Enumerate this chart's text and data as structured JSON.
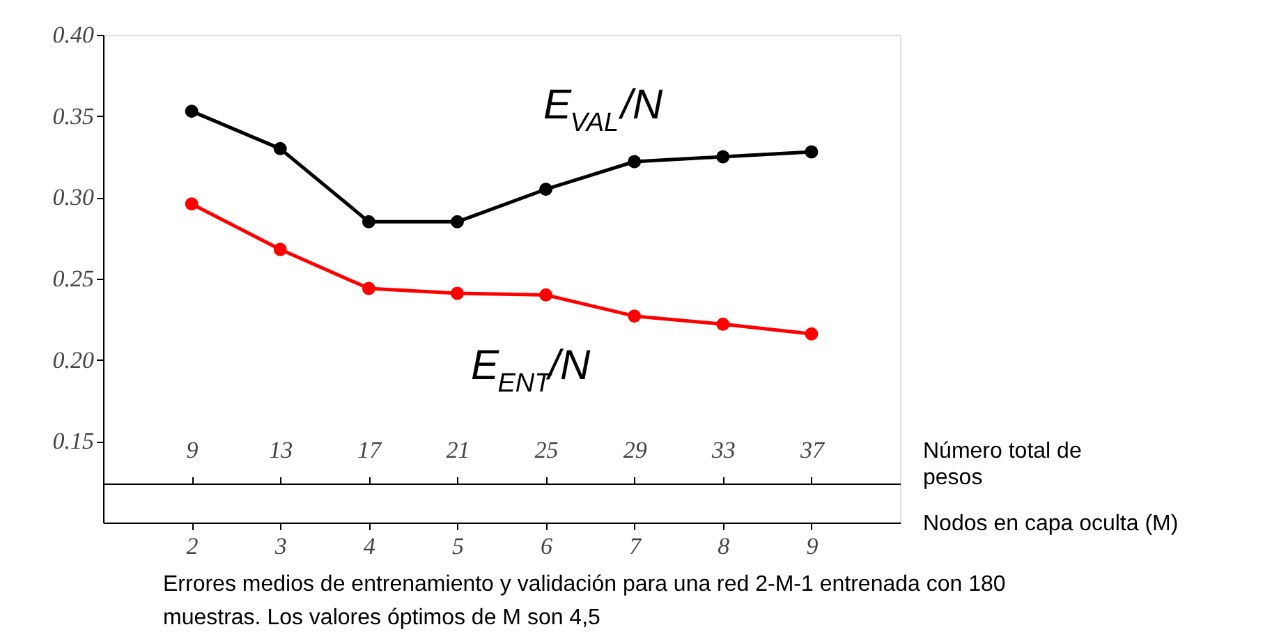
{
  "chart_data": {
    "type": "line",
    "x": [
      2,
      3,
      4,
      5,
      6,
      7,
      8,
      9
    ],
    "series": [
      {
        "name": "E$_{VAL}$/N",
        "color": "#000000",
        "values": [
          0.353,
          0.33,
          0.285,
          0.285,
          0.305,
          0.322,
          0.325,
          0.328
        ]
      },
      {
        "name": "E$_{ENT}$/N",
        "color": "#ff0000",
        "values": [
          0.296,
          0.268,
          0.244,
          0.241,
          0.24,
          0.227,
          0.222,
          0.216
        ]
      }
    ],
    "xlim": [
      1,
      10
    ],
    "xticks": [
      2,
      3,
      4,
      5,
      6,
      7,
      8,
      9
    ],
    "xlabel": "Nodos en capa oculta (M)",
    "x2lim": [
      5,
      41
    ],
    "x2ticks": [
      9,
      13,
      17,
      21,
      25,
      29,
      33,
      37
    ],
    "x2label": "Número total de pesos",
    "ylim": [
      0.1,
      0.4
    ],
    "yticks": [
      0.15,
      {
        "value": 0.2,
        "label": "0.20"
      },
      0.25,
      {
        "value": 0.3,
        "label": "0.30"
      },
      0.35,
      {
        "value": 0.4,
        "label": "0.40"
      }
    ],
    "annotations": [
      "Errores medios de entrenamiento y validación para una red 2-M-1 entrenada con 180 muestras. Los valores óptimos de M son 4,5"
    ],
    "marker": "circle",
    "line_style": "solid",
    "grid": false
  }
}
